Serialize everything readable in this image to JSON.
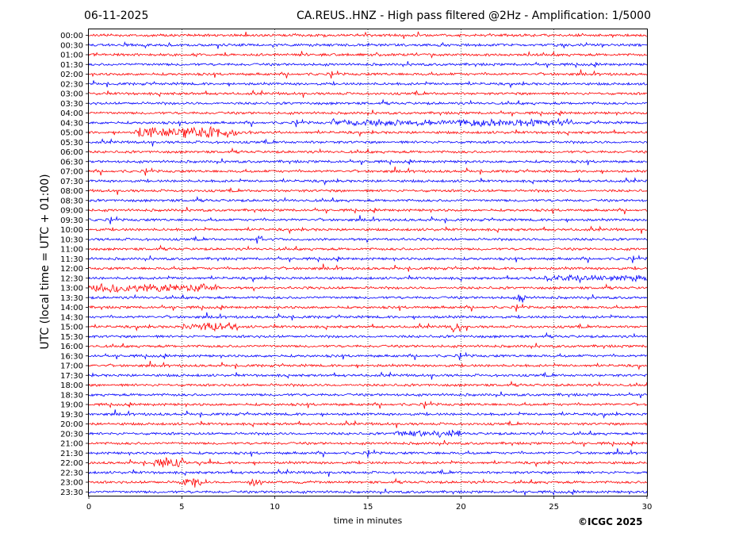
{
  "header": {
    "date": "06-11-2025",
    "title": "CA.REUS..HNZ - High pass filtered @2Hz - Amplification: 1/5000"
  },
  "copyright": "©ICGC 2025",
  "colors": {
    "trace_a": "#ff0000",
    "trace_b": "#0000ff",
    "grid": "#000000"
  },
  "chart_data": {
    "type": "line",
    "description_kind": "helicorder",
    "xlabel": "time in minutes",
    "ylabel": "UTC (local time = UTC + 01:00)",
    "xlim": [
      0,
      30
    ],
    "x_ticks": [
      0,
      5,
      10,
      15,
      20,
      25,
      30
    ],
    "x_tick_labels": [
      "0",
      "5",
      "10",
      "15",
      "20",
      "25",
      "30"
    ],
    "vertical_gridlines": [
      5,
      10,
      15,
      20,
      25
    ],
    "rows": [
      "00:00",
      "00:30",
      "01:00",
      "01:30",
      "02:00",
      "02:30",
      "03:00",
      "03:30",
      "04:00",
      "04:30",
      "05:00",
      "05:30",
      "06:00",
      "06:30",
      "07:00",
      "07:30",
      "08:00",
      "08:30",
      "09:00",
      "09:30",
      "10:00",
      "10:30",
      "11:00",
      "11:30",
      "12:00",
      "12:30",
      "13:00",
      "13:30",
      "14:00",
      "14:30",
      "15:00",
      "15:30",
      "16:00",
      "16:30",
      "17:00",
      "17:30",
      "18:00",
      "18:30",
      "19:00",
      "19:30",
      "20:00",
      "20:30",
      "21:00",
      "21:30",
      "22:00",
      "22:30",
      "23:00",
      "23:30"
    ],
    "row_colors": "alternating red (even rows) / blue (odd rows)",
    "bursts": [
      {
        "row": "05:00",
        "start": 2.5,
        "end": 8.0,
        "amplitude": 0.8
      },
      {
        "row": "04:30",
        "start": 13.0,
        "end": 26.0,
        "amplitude": 0.55
      },
      {
        "row": "13:00",
        "start": 0.0,
        "end": 7.0,
        "amplitude": 0.6
      },
      {
        "row": "15:00",
        "start": 5.0,
        "end": 8.0,
        "amplitude": 0.6
      },
      {
        "row": "15:00",
        "start": 19.5,
        "end": 20.0,
        "amplitude": 1.0
      },
      {
        "row": "22:00",
        "start": 3.5,
        "end": 5.2,
        "amplitude": 0.7
      },
      {
        "row": "23:00",
        "start": 4.8,
        "end": 6.0,
        "amplitude": 0.7
      },
      {
        "row": "23:00",
        "start": 8.5,
        "end": 9.3,
        "amplitude": 0.7
      },
      {
        "row": "20:30",
        "start": 16.5,
        "end": 20.0,
        "amplitude": 0.5
      },
      {
        "row": "12:30",
        "start": 24.5,
        "end": 30.0,
        "amplitude": 0.45
      },
      {
        "row": "13:30",
        "start": 23.0,
        "end": 23.5,
        "amplitude": 0.8
      },
      {
        "row": "10:30",
        "start": 9.0,
        "end": 9.3,
        "amplitude": 0.9
      }
    ]
  }
}
